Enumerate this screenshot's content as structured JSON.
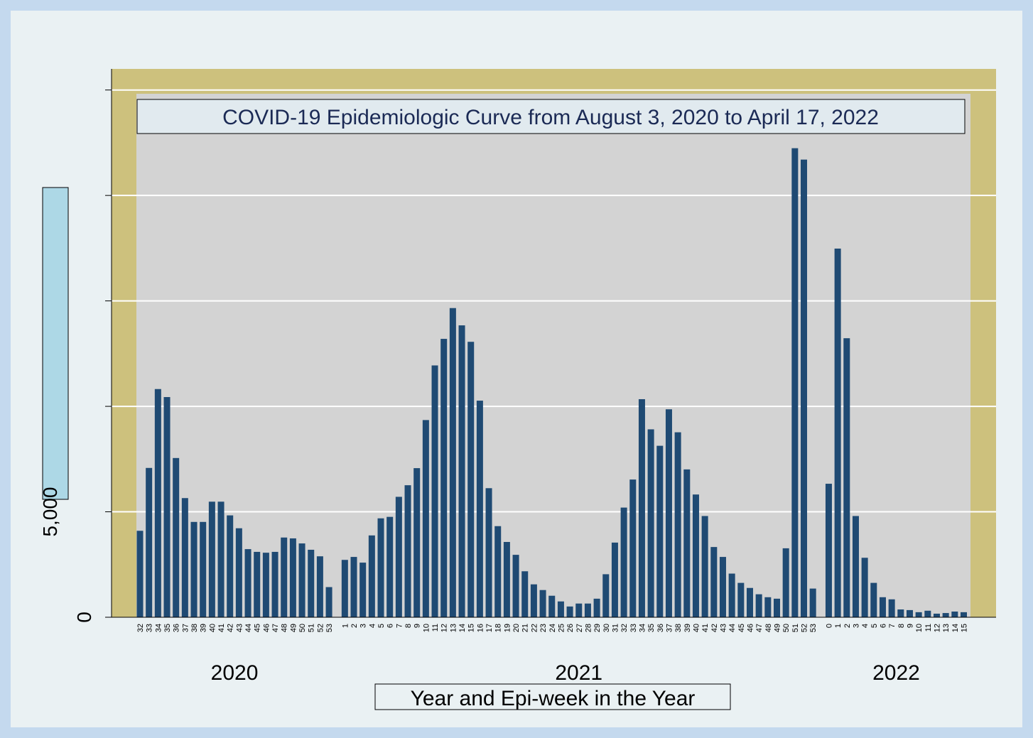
{
  "chart_data": {
    "type": "bar",
    "title": "COVID-19 Epidemiologic Curve from August 3, 2020 to April 17, 2022",
    "x_label": "Year and Epi-week in the Year",
    "color": "#1f4a73",
    "ylim": [
      0,
      26000
    ],
    "yticks": [
      0,
      {
        "value": 5000,
        "label": "5,000"
      }
    ],
    "yticks_unlabeled": [
      10000,
      15000,
      20000,
      25000
    ],
    "grid": true,
    "groups": [
      {
        "name": "2020",
        "categories": [
          "32",
          "33",
          "34",
          "35",
          "36",
          "37",
          "38",
          "39",
          "40",
          "41",
          "42",
          "43",
          "44",
          "45",
          "46",
          "47",
          "48",
          "49",
          "50",
          "51",
          "52",
          "53"
        ],
        "values": [
          4100,
          7080,
          10820,
          10440,
          7550,
          5650,
          4520,
          4520,
          5480,
          5480,
          4830,
          4220,
          3230,
          3100,
          3060,
          3100,
          3780,
          3740,
          3500,
          3200,
          2890,
          1430
        ]
      },
      {
        "name": "2021",
        "categories": [
          "1",
          "2",
          "3",
          "4",
          "5",
          "6",
          "7",
          "8",
          "9",
          "10",
          "11",
          "12",
          "13",
          "14",
          "15",
          "16",
          "17",
          "18",
          "19",
          "20",
          "21",
          "22",
          "23",
          "24",
          "25",
          "26",
          "27",
          "28",
          "29",
          "30",
          "31",
          "32",
          "33",
          "34",
          "35",
          "36",
          "37",
          "38",
          "39",
          "40",
          "41",
          "42",
          "43",
          "44",
          "45",
          "46",
          "47",
          "48",
          "49",
          "50",
          "51",
          "52",
          "53"
        ],
        "values": [
          2720,
          2860,
          2590,
          3880,
          4690,
          4760,
          5710,
          6260,
          7070,
          9350,
          11940,
          13200,
          14660,
          13840,
          13060,
          10270,
          6120,
          4320,
          3570,
          2960,
          2180,
          1560,
          1290,
          1020,
          750,
          510,
          650,
          650,
          880,
          2040,
          3540,
          5200,
          6530,
          10340,
          8910,
          8130,
          9860,
          8770,
          7010,
          5820,
          4800,
          3330,
          2860,
          2070,
          1630,
          1390,
          1090,
          950,
          880,
          3270,
          22240,
          21700,
          1360
        ]
      },
      {
        "name": "2022",
        "categories": [
          "0",
          "1",
          "2",
          "3",
          "4",
          "5",
          "6",
          "7",
          "8",
          "9",
          "10",
          "11",
          "12",
          "13",
          "14",
          "15"
        ],
        "values": [
          6330,
          17480,
          13230,
          4800,
          2820,
          1630,
          950,
          850,
          370,
          340,
          240,
          310,
          170,
          200,
          270,
          240
        ]
      }
    ]
  }
}
